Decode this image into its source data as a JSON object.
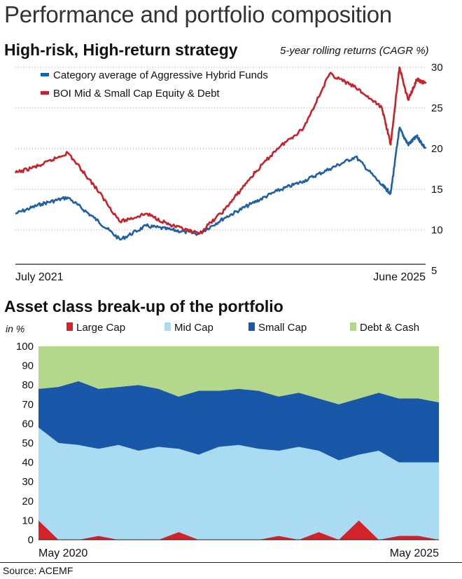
{
  "header": {
    "title": "Performance and portfolio composition",
    "source": "Source: ACEMF"
  },
  "chart_data": [
    {
      "type": "line",
      "title": "High-risk, High-return strategy",
      "subtitle": "5-year rolling returns (CAGR %)",
      "x_start_label": "July 2021",
      "x_end_label": "June 2025",
      "ylim": [
        5,
        30
      ],
      "yticks": [
        "5",
        "10",
        "15",
        "20",
        "25",
        "30"
      ],
      "grid": "horizontal-dotted",
      "legend_position": "top-left",
      "series": [
        {
          "name": "Category average of Aggressive Hybrid Funds",
          "color": "#1f5fa8",
          "x": [
            "2021-07",
            "2021-10",
            "2022-01",
            "2022-04",
            "2022-07",
            "2022-10",
            "2023-01",
            "2023-04",
            "2023-07",
            "2023-10",
            "2024-01",
            "2024-04",
            "2024-07",
            "2024-10",
            "2025-01",
            "2025-02",
            "2025-03",
            "2025-04",
            "2025-05",
            "2025-06"
          ],
          "values": [
            12.0,
            13.2,
            14.0,
            11.5,
            8.8,
            10.5,
            10.0,
            9.5,
            11.5,
            13.2,
            14.8,
            16.0,
            17.5,
            19.0,
            15.5,
            14.5,
            22.5,
            20.5,
            21.5,
            20.0
          ]
        },
        {
          "name": "BOI Mid & Small Cap Equity & Debt",
          "color": "#cc1f27",
          "x": [
            "2021-07",
            "2021-10",
            "2022-01",
            "2022-04",
            "2022-07",
            "2022-10",
            "2023-01",
            "2023-04",
            "2023-07",
            "2023-10",
            "2024-01",
            "2024-04",
            "2024-07",
            "2024-10",
            "2025-01",
            "2025-02",
            "2025-03",
            "2025-04",
            "2025-05",
            "2025-06"
          ],
          "values": [
            17.0,
            18.0,
            19.5,
            15.5,
            11.0,
            12.0,
            10.5,
            9.5,
            12.5,
            16.5,
            20.0,
            22.5,
            29.2,
            27.5,
            25.0,
            20.5,
            30.0,
            26.0,
            28.5,
            28.0
          ]
        }
      ]
    },
    {
      "type": "area",
      "stacked": true,
      "title": "Asset class break-up of the portfolio",
      "ylabel": "in %",
      "x_start_label": "May 2020",
      "x_end_label": "May 2025",
      "ylim": [
        0,
        100
      ],
      "yticks": [
        "0",
        "10",
        "20",
        "30",
        "40",
        "50",
        "60",
        "70",
        "80",
        "90",
        "100"
      ],
      "legend_position": "top",
      "x": [
        "2020-05",
        "2020-08",
        "2020-11",
        "2021-02",
        "2021-05",
        "2021-08",
        "2021-11",
        "2022-02",
        "2022-05",
        "2022-08",
        "2022-11",
        "2023-02",
        "2023-05",
        "2023-08",
        "2023-11",
        "2024-02",
        "2024-05",
        "2024-08",
        "2024-11",
        "2025-02",
        "2025-05"
      ],
      "series": [
        {
          "name": "Large Cap",
          "color": "#d2232a",
          "values": [
            10,
            0,
            0,
            2,
            0,
            0,
            0,
            4,
            0,
            0,
            0,
            0,
            2,
            0,
            4,
            0,
            10,
            0,
            2,
            2,
            0
          ]
        },
        {
          "name": "Mid Cap",
          "color": "#a9dcf2",
          "values": [
            48,
            50,
            49,
            45,
            49,
            46,
            48,
            43,
            44,
            48,
            49,
            47,
            44,
            48,
            42,
            41,
            34,
            46,
            38,
            38,
            40
          ]
        },
        {
          "name": "Small Cap",
          "color": "#1958a8",
          "values": [
            20,
            29,
            33,
            31,
            30,
            34,
            30,
            27,
            33,
            29,
            29,
            30,
            28,
            28,
            27,
            29,
            29,
            30,
            33,
            33,
            31
          ]
        },
        {
          "name": "Debt & Cash",
          "color": "#b3d88b",
          "values": [
            22,
            21,
            18,
            22,
            21,
            20,
            22,
            26,
            23,
            23,
            22,
            23,
            26,
            24,
            27,
            30,
            27,
            24,
            27,
            27,
            29
          ]
        }
      ]
    }
  ]
}
